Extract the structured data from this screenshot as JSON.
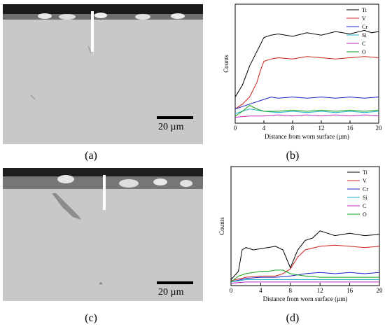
{
  "figure": {
    "panel_a": {
      "label": "(a)",
      "scale_bar_text": "20 µm"
    },
    "panel_b": {
      "label": "(b)"
    },
    "panel_c": {
      "label": "(c)",
      "scale_bar_text": "20 µm"
    },
    "panel_d": {
      "label": "(d)"
    }
  },
  "chart_data": [
    {
      "type": "line",
      "panel": "(b)",
      "title": "",
      "xlabel": "Distance from worn surface (µm)",
      "ylabel": "Counts",
      "xlim": [
        0,
        20
      ],
      "xticks": [
        0,
        4,
        8,
        12,
        16,
        20
      ],
      "grid": false,
      "legend_position": "top-right",
      "series": [
        {
          "name": "Ti",
          "color": "#000000",
          "x": [
            0,
            1,
            2,
            3,
            4,
            5,
            6,
            8,
            10,
            12,
            14,
            16,
            18,
            19,
            20
          ],
          "y": [
            0.22,
            0.32,
            0.48,
            0.6,
            0.72,
            0.74,
            0.75,
            0.73,
            0.76,
            0.74,
            0.77,
            0.75,
            0.78,
            0.76,
            0.77
          ]
        },
        {
          "name": "V",
          "color": "#d0201c",
          "x": [
            0,
            1,
            2,
            3,
            3.5,
            4,
            5,
            6,
            8,
            10,
            12,
            14,
            16,
            18,
            20
          ],
          "y": [
            0.12,
            0.16,
            0.22,
            0.34,
            0.44,
            0.52,
            0.54,
            0.55,
            0.54,
            0.56,
            0.55,
            0.54,
            0.55,
            0.56,
            0.55
          ]
        },
        {
          "name": "Cr",
          "color": "#1a22c8",
          "x": [
            0,
            2,
            4,
            5,
            6,
            8,
            10,
            12,
            14,
            16,
            18,
            20
          ],
          "y": [
            0.12,
            0.16,
            0.2,
            0.22,
            0.21,
            0.22,
            0.21,
            0.22,
            0.21,
            0.22,
            0.21,
            0.22
          ]
        },
        {
          "name": "Si",
          "color": "#1fb0c8",
          "x": [
            0,
            2,
            4,
            6,
            8,
            10,
            12,
            14,
            16,
            18,
            20
          ],
          "y": [
            0.08,
            0.12,
            0.1,
            0.09,
            0.1,
            0.09,
            0.1,
            0.09,
            0.1,
            0.09,
            0.1
          ]
        },
        {
          "name": "C",
          "color": "#c020c0",
          "x": [
            0,
            2,
            4,
            6,
            8,
            10,
            12,
            14,
            16,
            18,
            20
          ],
          "y": [
            0.05,
            0.06,
            0.06,
            0.07,
            0.06,
            0.07,
            0.06,
            0.07,
            0.06,
            0.07,
            0.06
          ]
        },
        {
          "name": "O",
          "color": "#10a010",
          "x": [
            0,
            1,
            2,
            3,
            4,
            6,
            8,
            10,
            12,
            14,
            16,
            18,
            20
          ],
          "y": [
            0.06,
            0.1,
            0.15,
            0.12,
            0.1,
            0.1,
            0.11,
            0.1,
            0.11,
            0.1,
            0.11,
            0.1,
            0.11
          ]
        }
      ]
    },
    {
      "type": "line",
      "panel": "(d)",
      "title": "",
      "xlabel": "Distance from worn surface (µm)",
      "ylabel": "Counts",
      "xlim": [
        0,
        20
      ],
      "xticks": [
        0,
        4,
        8,
        12,
        16,
        20
      ],
      "grid": false,
      "legend_position": "top-right",
      "series": [
        {
          "name": "Ti",
          "color": "#000000",
          "x": [
            0,
            1,
            1.5,
            2,
            3,
            4,
            5,
            6,
            7,
            8,
            9,
            10,
            11,
            12,
            13,
            14,
            16,
            18,
            20
          ],
          "y": [
            0.05,
            0.12,
            0.3,
            0.32,
            0.3,
            0.31,
            0.32,
            0.33,
            0.3,
            0.15,
            0.3,
            0.38,
            0.4,
            0.46,
            0.44,
            0.42,
            0.44,
            0.42,
            0.43
          ]
        },
        {
          "name": "V",
          "color": "#d0201c",
          "x": [
            0,
            2,
            4,
            6,
            7,
            8,
            9,
            10,
            12,
            14,
            16,
            18,
            20
          ],
          "y": [
            0.04,
            0.07,
            0.08,
            0.08,
            0.1,
            0.14,
            0.24,
            0.3,
            0.33,
            0.34,
            0.33,
            0.32,
            0.33
          ]
        },
        {
          "name": "Cr",
          "color": "#1a22c8",
          "x": [
            0,
            2,
            4,
            6,
            8,
            10,
            12,
            14,
            16,
            18,
            20
          ],
          "y": [
            0.03,
            0.06,
            0.07,
            0.07,
            0.08,
            0.1,
            0.11,
            0.1,
            0.11,
            0.1,
            0.11
          ]
        },
        {
          "name": "Si",
          "color": "#1fb0c8",
          "x": [
            0,
            2,
            4,
            6,
            8,
            10,
            12,
            14,
            16,
            18,
            20
          ],
          "y": [
            0.03,
            0.05,
            0.05,
            0.05,
            0.05,
            0.05,
            0.05,
            0.05,
            0.05,
            0.05,
            0.05
          ]
        },
        {
          "name": "C",
          "color": "#c020c0",
          "x": [
            0,
            2,
            4,
            6,
            8,
            10,
            12,
            14,
            16,
            18,
            20
          ],
          "y": [
            0.02,
            0.03,
            0.03,
            0.03,
            0.03,
            0.03,
            0.03,
            0.03,
            0.03,
            0.03,
            0.03
          ]
        },
        {
          "name": "O",
          "color": "#10a010",
          "x": [
            0,
            1,
            2,
            3,
            4,
            5,
            6,
            7,
            8,
            10,
            12,
            14,
            16,
            18,
            20
          ],
          "y": [
            0.03,
            0.08,
            0.1,
            0.11,
            0.12,
            0.12,
            0.13,
            0.13,
            0.1,
            0.08,
            0.07,
            0.07,
            0.07,
            0.07,
            0.07
          ]
        }
      ]
    }
  ]
}
